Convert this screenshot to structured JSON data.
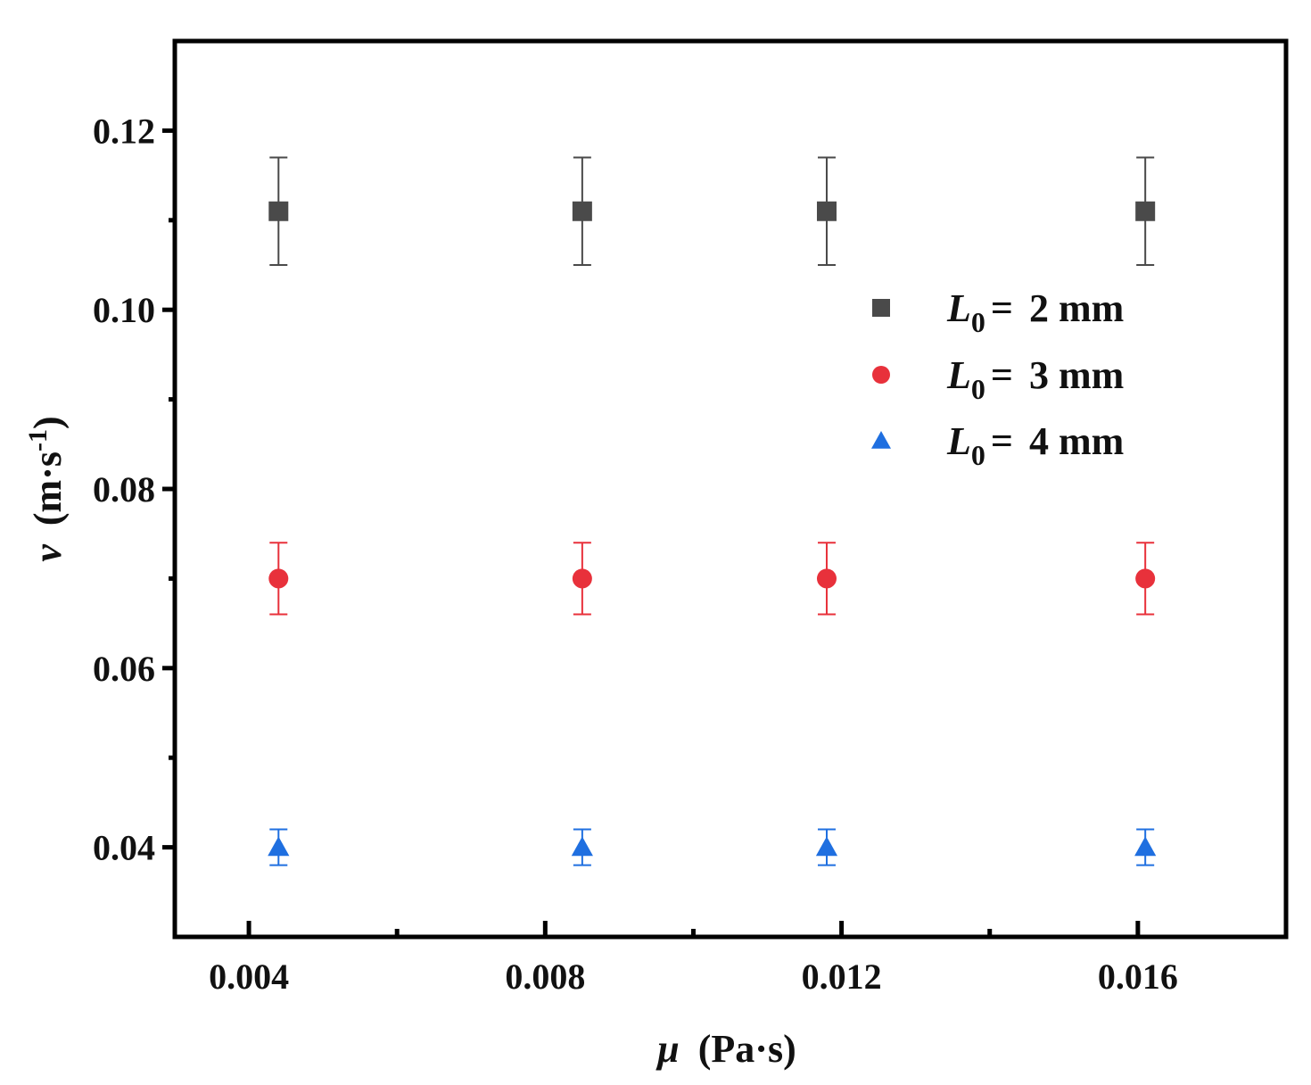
{
  "chart_data": {
    "type": "scatter",
    "title": "",
    "xlabel": {
      "symbol": "μ",
      "unit": "(Pa·s)"
    },
    "ylabel": {
      "symbol": "v",
      "unit_pre": "(m·s",
      "unit_sup": "-1",
      "unit_post": ")"
    },
    "xlim": [
      0.003,
      0.018
    ],
    "ylim": [
      0.03,
      0.13
    ],
    "x_major_ticks": [
      0.004,
      0.008,
      0.012,
      0.016
    ],
    "x_minor_ticks": [
      0.006,
      0.01,
      0.014
    ],
    "x_tick_labels": [
      "0.004",
      "0.008",
      "0.012",
      "0.016"
    ],
    "y_major_ticks": [
      0.04,
      0.06,
      0.08,
      0.1,
      0.12
    ],
    "y_minor_ticks": [
      0.05,
      0.07,
      0.09,
      0.11
    ],
    "y_tick_labels": [
      "0.04",
      "0.06",
      "0.08",
      "0.10",
      "0.12"
    ],
    "grid": false,
    "legend_position": "top-right",
    "x": [
      0.0044,
      0.0085,
      0.0118,
      0.0161
    ],
    "series": [
      {
        "name": "2 mm",
        "legend_symbol": "L",
        "legend_sub": "0",
        "legend_eq": "=",
        "marker": "square",
        "color": "#4a4a4a",
        "values": [
          0.111,
          0.111,
          0.111,
          0.111
        ],
        "error": [
          0.006,
          0.006,
          0.006,
          0.006
        ]
      },
      {
        "name": "3 mm",
        "legend_symbol": "L",
        "legend_sub": "0",
        "legend_eq": "=",
        "marker": "circle",
        "color": "#e8313b",
        "values": [
          0.07,
          0.07,
          0.07,
          0.07
        ],
        "error": [
          0.004,
          0.004,
          0.004,
          0.004
        ]
      },
      {
        "name": "4 mm",
        "legend_symbol": "L",
        "legend_sub": "0",
        "legend_eq": "=",
        "marker": "triangle",
        "color": "#1f6fe0",
        "values": [
          0.04,
          0.04,
          0.04,
          0.04
        ],
        "error": [
          0.002,
          0.002,
          0.002,
          0.002
        ]
      }
    ]
  }
}
